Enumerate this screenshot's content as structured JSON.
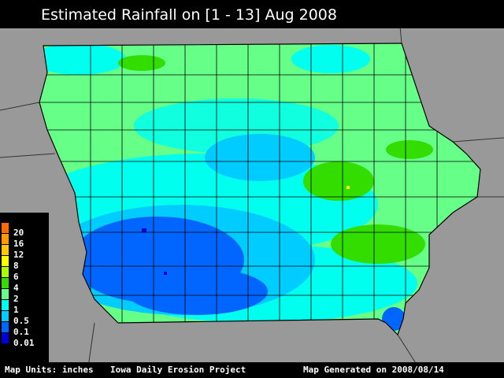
{
  "header": {
    "title": "Estimated Rainfall on [1 - 13] Aug 2008"
  },
  "legend": {
    "items": [
      {
        "label": "20",
        "color": "#ff6a00"
      },
      {
        "label": "16",
        "color": "#ff9a00"
      },
      {
        "label": "12",
        "color": "#ffc800"
      },
      {
        "label": "8",
        "color": "#ffff00"
      },
      {
        "label": "6",
        "color": "#aaff00"
      },
      {
        "label": "4",
        "color": "#33dd00"
      },
      {
        "label": "2",
        "color": "#66ff88"
      },
      {
        "label": "1",
        "color": "#00ffee"
      },
      {
        "label": "0.5",
        "color": "#00ccff"
      },
      {
        "label": "0.1",
        "color": "#0066ff"
      },
      {
        "label": "0.01",
        "color": "#0000dd"
      }
    ]
  },
  "footer": {
    "units": "Map Units: inches",
    "project": "Iowa Daily Erosion Project",
    "generated": "Map Generated on  2008/08/14"
  }
}
